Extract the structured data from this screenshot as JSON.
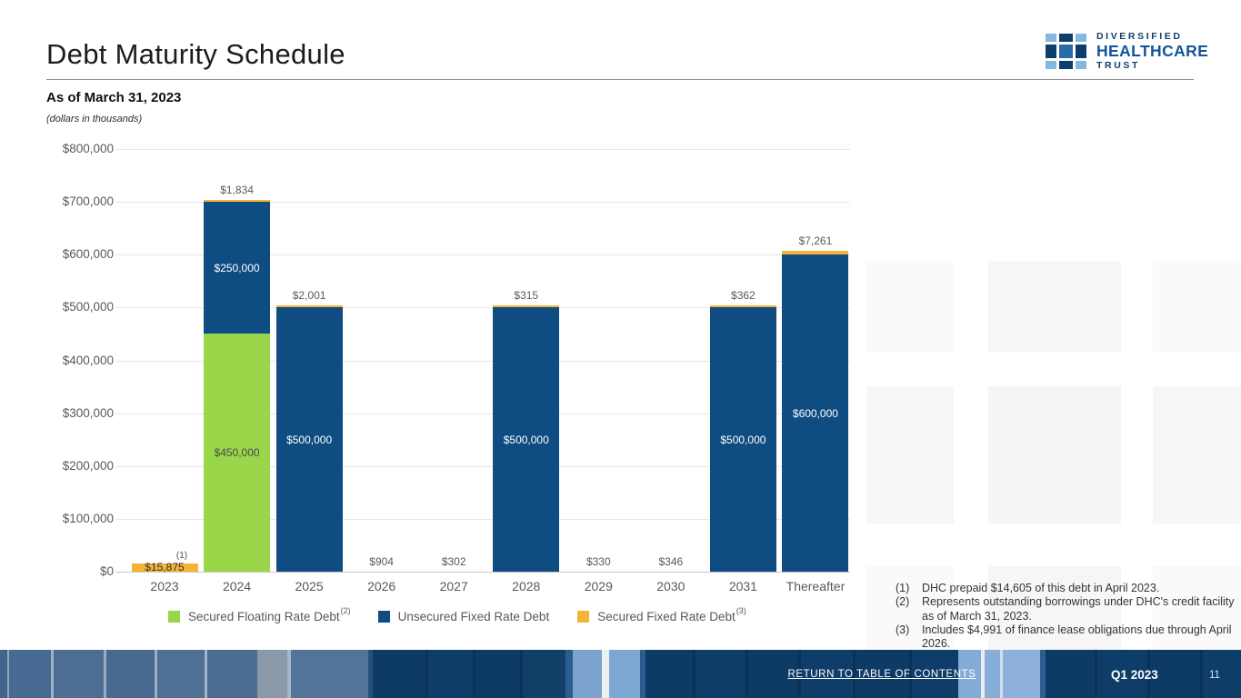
{
  "header": {
    "title": "Debt Maturity Schedule",
    "subtitle": "As of March 31, 2023",
    "note": "(dollars in thousands)"
  },
  "logo": {
    "line1": "DIVERSIFIED",
    "line2": "HEALTHCARE",
    "line3": "TRUST"
  },
  "colors": {
    "green": "#99d64a",
    "navy": "#0f4c81",
    "orange": "#f5b337",
    "grid": "#e7e7e7",
    "text_gray": "#58595b"
  },
  "chart_data": {
    "type": "bar",
    "subtype": "stacked",
    "title": "Debt Maturity Schedule",
    "units": "dollars in thousands",
    "categories": [
      "2023",
      "2024",
      "2025",
      "2026",
      "2027",
      "2028",
      "2029",
      "2030",
      "2031",
      "Thereafter"
    ],
    "series": [
      {
        "name": "Secured Floating Rate Debt",
        "color": "#99d64a",
        "values": [
          0,
          450000,
          0,
          0,
          0,
          0,
          0,
          0,
          0,
          0
        ]
      },
      {
        "name": "Unsecured Fixed Rate Debt",
        "color": "#0f4c81",
        "values": [
          0,
          250000,
          500000,
          0,
          0,
          500000,
          0,
          0,
          500000,
          600000
        ]
      },
      {
        "name": "Secured Fixed Rate Debt",
        "color": "#f5b337",
        "values": [
          15875,
          1834,
          2001,
          904,
          302,
          315,
          330,
          346,
          362,
          7261
        ]
      }
    ],
    "ylim": [
      0,
      800000
    ],
    "ytick_labels": [
      "$800,000",
      "$700,000",
      "$600,000",
      "$500,000",
      "$400,000",
      "$300,000",
      "$200,000",
      "$100,000",
      "$0"
    ],
    "grid": "horizontal",
    "legend_position": "bottom",
    "bars": [
      {
        "category": "2023",
        "segment_labels": [
          "",
          "",
          "$15,875"
        ],
        "top_label": "",
        "footnote": "(1)"
      },
      {
        "category": "2024",
        "segment_labels": [
          "$450,000",
          "$250,000",
          ""
        ],
        "top_label": "$1,834",
        "footnote": ""
      },
      {
        "category": "2025",
        "segment_labels": [
          "",
          "$500,000",
          ""
        ],
        "top_label": "$2,001",
        "footnote": ""
      },
      {
        "category": "2026",
        "segment_labels": [
          "",
          "",
          ""
        ],
        "top_label": "$904",
        "footnote": ""
      },
      {
        "category": "2027",
        "segment_labels": [
          "",
          "",
          ""
        ],
        "top_label": "$302",
        "footnote": ""
      },
      {
        "category": "2028",
        "segment_labels": [
          "",
          "$500,000",
          ""
        ],
        "top_label": "$315",
        "footnote": ""
      },
      {
        "category": "2029",
        "segment_labels": [
          "",
          "",
          ""
        ],
        "top_label": "$330",
        "footnote": ""
      },
      {
        "category": "2030",
        "segment_labels": [
          "",
          "",
          ""
        ],
        "top_label": "$346",
        "footnote": ""
      },
      {
        "category": "2031",
        "segment_labels": [
          "",
          "$500,000",
          ""
        ],
        "top_label": "$362",
        "footnote": ""
      },
      {
        "category": "Thereafter",
        "segment_labels": [
          "",
          "$600,000",
          ""
        ],
        "top_label": "$7,261",
        "footnote": ""
      }
    ]
  },
  "legend": {
    "items": [
      {
        "label": "Secured Floating Rate Debt",
        "sup": "(2)"
      },
      {
        "label": "Unsecured Fixed Rate Debt",
        "sup": ""
      },
      {
        "label": "Secured Fixed Rate Debt",
        "sup": "(3)"
      }
    ]
  },
  "footnotes": [
    {
      "marker": "(1)",
      "text": "DHC prepaid $14,605 of this debt in April 2023."
    },
    {
      "marker": "(2)",
      "text": "Represents outstanding borrowings under DHC's credit facility as of March 31, 2023."
    },
    {
      "marker": "(3)",
      "text": "Includes $4,991 of finance lease obligations due through April 2026."
    }
  ],
  "footer": {
    "link": "RETURN TO TABLE OF CONTENTS",
    "period": "Q1 2023",
    "page": "11"
  }
}
